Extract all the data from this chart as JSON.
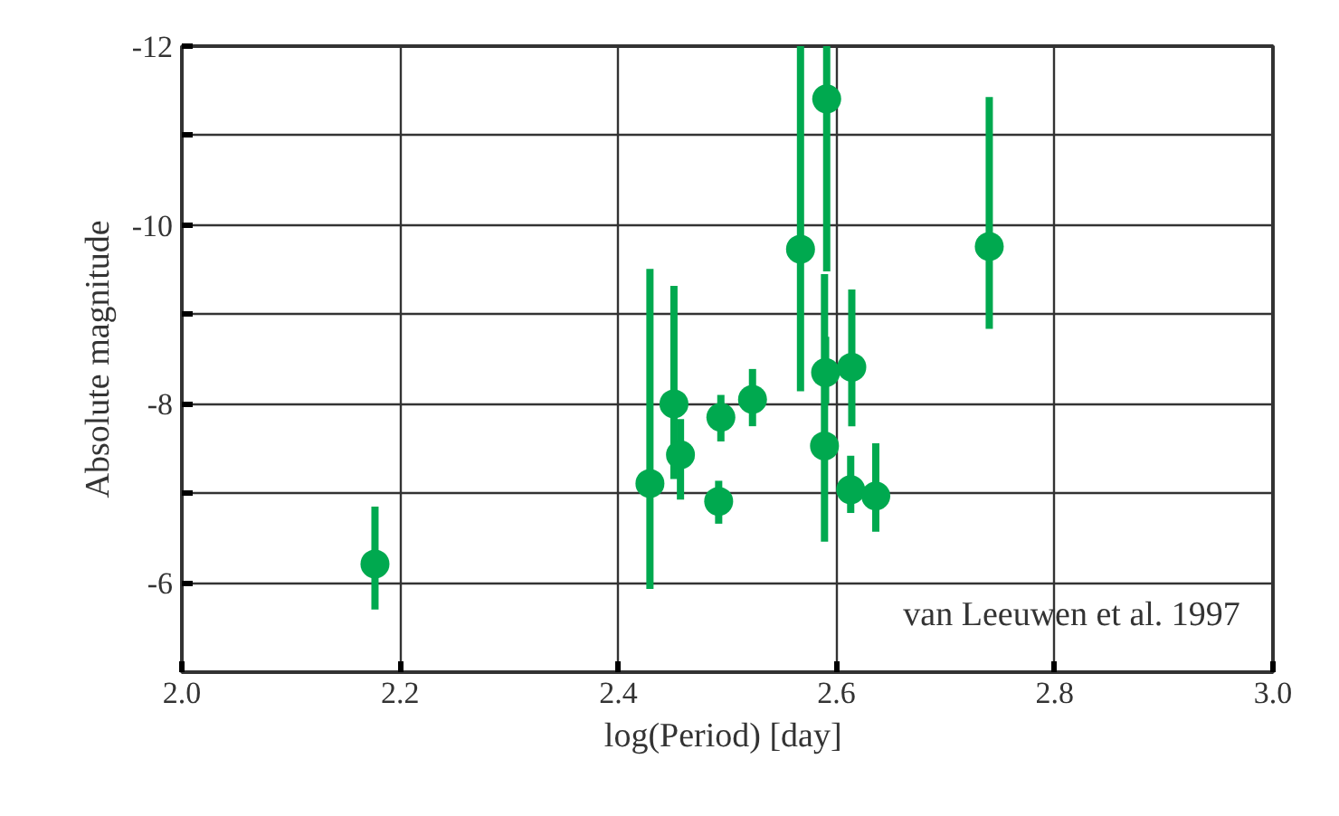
{
  "chart_data": {
    "type": "scatter",
    "xlabel": "log(Period)  [day]",
    "ylabel": "Absolute magnitude",
    "x": [
      2.177,
      2.429,
      2.451,
      2.457,
      2.494,
      2.492,
      2.523,
      2.567,
      2.591,
      2.59,
      2.589,
      2.614,
      2.613,
      2.636,
      2.74
    ],
    "series": [
      {
        "color": "#00a94f",
        "values": [
          -6.21,
          -7.11,
          -8.0,
          -7.43,
          -7.85,
          -6.91,
          -8.05,
          -9.73,
          -11.41,
          -8.35,
          -7.53,
          -8.41,
          -7.04,
          -6.97,
          -9.76
        ],
        "errors": [
          [
            -6.85,
            -5.7
          ],
          [
            -9.51,
            -5.93
          ],
          [
            -9.32,
            -7.16
          ],
          [
            -7.83,
            -6.93
          ],
          [
            -8.1,
            -7.58
          ],
          [
            -7.14,
            -6.66
          ],
          [
            -8.39,
            -7.75
          ],
          [
            -12.0,
            -8.14
          ],
          [
            -12.0,
            -9.48
          ],
          [
            -8.75,
            -8.0
          ],
          [
            -9.45,
            -6.46
          ],
          [
            -9.28,
            -7.75
          ],
          [
            -7.42,
            -6.78
          ],
          [
            -7.56,
            -6.57
          ],
          [
            -11.43,
            -8.84
          ]
        ]
      }
    ],
    "xlim": [
      2.0,
      3.0
    ],
    "ylim": [
      -5,
      -12
    ],
    "xticks": [
      {
        "value": 2.0,
        "label": "2.0"
      },
      {
        "value": 2.2,
        "label": "2.2"
      },
      {
        "value": 2.4,
        "label": "2.4"
      },
      {
        "value": 2.6,
        "label": "2.6"
      },
      {
        "value": 2.8,
        "label": "2.8"
      },
      {
        "value": 3.0,
        "label": "3.0"
      }
    ],
    "yticks": [
      -12,
      {
        "value": -11,
        "label": null
      },
      -10,
      {
        "value": -9,
        "label": null
      },
      -8,
      {
        "value": -7,
        "label": null
      },
      -6
    ],
    "grid": true,
    "marker": "circle",
    "annotations": [
      "van Leeuwen et al. 1997"
    ]
  }
}
